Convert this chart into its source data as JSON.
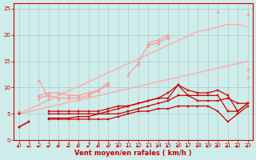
{
  "x": [
    0,
    1,
    2,
    3,
    4,
    5,
    6,
    7,
    8,
    9,
    10,
    11,
    12,
    13,
    14,
    15,
    16,
    17,
    18,
    19,
    20,
    21,
    22,
    23
  ],
  "lines": [
    {
      "y": [
        2.5,
        3.5,
        null,
        4.0,
        4.0,
        4.0,
        4.0,
        4.0,
        4.0,
        4.0,
        4.5,
        5.0,
        5.5,
        5.5,
        6.0,
        6.0,
        6.5,
        6.5,
        6.5,
        6.5,
        5.5,
        3.5,
        5.0,
        6.5
      ],
      "color": "#cc0000",
      "lw": 0.9,
      "marker": "s",
      "ms": 1.8,
      "zorder": 5
    },
    {
      "y": [
        2.5,
        3.5,
        null,
        4.2,
        4.2,
        4.2,
        4.5,
        4.5,
        5.0,
        5.5,
        6.0,
        6.5,
        7.0,
        7.5,
        8.0,
        8.0,
        10.5,
        8.5,
        8.5,
        8.5,
        8.5,
        5.5,
        5.5,
        7.0
      ],
      "color": "#cc0000",
      "lw": 0.9,
      "marker": "s",
      "ms": 1.8,
      "zorder": 5
    },
    {
      "y": [
        5.0,
        null,
        null,
        5.0,
        5.0,
        5.0,
        5.0,
        5.0,
        5.0,
        5.0,
        5.0,
        5.5,
        6.0,
        6.5,
        7.0,
        7.5,
        8.5,
        8.5,
        7.5,
        7.5,
        7.5,
        8.0,
        7.0,
        7.0
      ],
      "color": "#cc0000",
      "lw": 0.9,
      "marker": "s",
      "ms": 1.8,
      "zorder": 5
    },
    {
      "y": [
        5.0,
        null,
        null,
        5.5,
        5.5,
        5.5,
        5.5,
        5.5,
        5.5,
        6.0,
        6.5,
        6.5,
        7.0,
        7.5,
        8.0,
        9.0,
        10.5,
        9.5,
        9.0,
        9.0,
        9.5,
        8.5,
        5.5,
        7.0
      ],
      "color": "#cc0000",
      "lw": 0.9,
      "marker": "s",
      "ms": 1.8,
      "zorder": 5
    },
    {
      "y": [
        5.0,
        5.43,
        5.87,
        6.3,
        6.74,
        7.17,
        7.61,
        8.04,
        8.48,
        8.91,
        9.35,
        9.78,
        10.22,
        10.65,
        11.09,
        11.52,
        11.96,
        12.39,
        12.83,
        13.26,
        13.7,
        14.13,
        14.57,
        15.0
      ],
      "color": "#ffaaaa",
      "lw": 1.0,
      "marker": null,
      "ms": 0,
      "zorder": 3
    },
    {
      "y": [
        5.0,
        5.87,
        6.74,
        7.61,
        8.48,
        9.35,
        10.22,
        11.09,
        11.96,
        12.83,
        13.7,
        14.57,
        15.43,
        16.3,
        17.17,
        18.04,
        18.91,
        19.78,
        20.65,
        21.0,
        21.5,
        22.0,
        22.0,
        21.5
      ],
      "color": "#ffaaaa",
      "lw": 1.0,
      "marker": null,
      "ms": 0,
      "zorder": 3
    },
    {
      "y": [
        5.5,
        null,
        8.0,
        8.5,
        8.0,
        8.0,
        8.0,
        8.5,
        9.5,
        10.5,
        null,
        null,
        15.0,
        18.0,
        18.5,
        19.5,
        null,
        null,
        null,
        null,
        null,
        null,
        null,
        13.5
      ],
      "color": "#ff9999",
      "lw": 0.9,
      "marker": "^",
      "ms": 2.5,
      "zorder": 4
    },
    {
      "y": [
        5.5,
        null,
        8.5,
        9.0,
        9.0,
        8.5,
        8.5,
        9.0,
        9.5,
        11.0,
        null,
        null,
        null,
        18.5,
        19.0,
        20.0,
        null,
        null,
        null,
        null,
        null,
        null,
        null,
        12.0
      ],
      "color": "#ff9999",
      "lw": 0.9,
      "marker": "^",
      "ms": 2.5,
      "zorder": 4
    },
    {
      "y": [
        5.5,
        null,
        11.5,
        8.0,
        null,
        null,
        null,
        null,
        null,
        null,
        null,
        12.5,
        14.5,
        null,
        null,
        null,
        null,
        null,
        null,
        null,
        24.5,
        null,
        null,
        24.0
      ],
      "color": "#ff9999",
      "lw": 0.9,
      "marker": "^",
      "ms": 2.5,
      "zorder": 4
    }
  ],
  "xlabel": "Vent moyen/en rafales ( km/h )",
  "xlim": [
    -0.5,
    23.5
  ],
  "ylim": [
    0,
    26
  ],
  "yticks": [
    0,
    5,
    10,
    15,
    20,
    25
  ],
  "xticks": [
    0,
    1,
    2,
    3,
    4,
    5,
    6,
    7,
    8,
    9,
    10,
    11,
    12,
    13,
    14,
    15,
    16,
    17,
    18,
    19,
    20,
    21,
    22,
    23
  ],
  "bg_color": "#ceecea",
  "grid_color": "#aacccc",
  "axis_color": "#cc0000",
  "tick_label_color": "#cc0000",
  "xlabel_color": "#cc0000",
  "arrow_color": "#cc0000"
}
